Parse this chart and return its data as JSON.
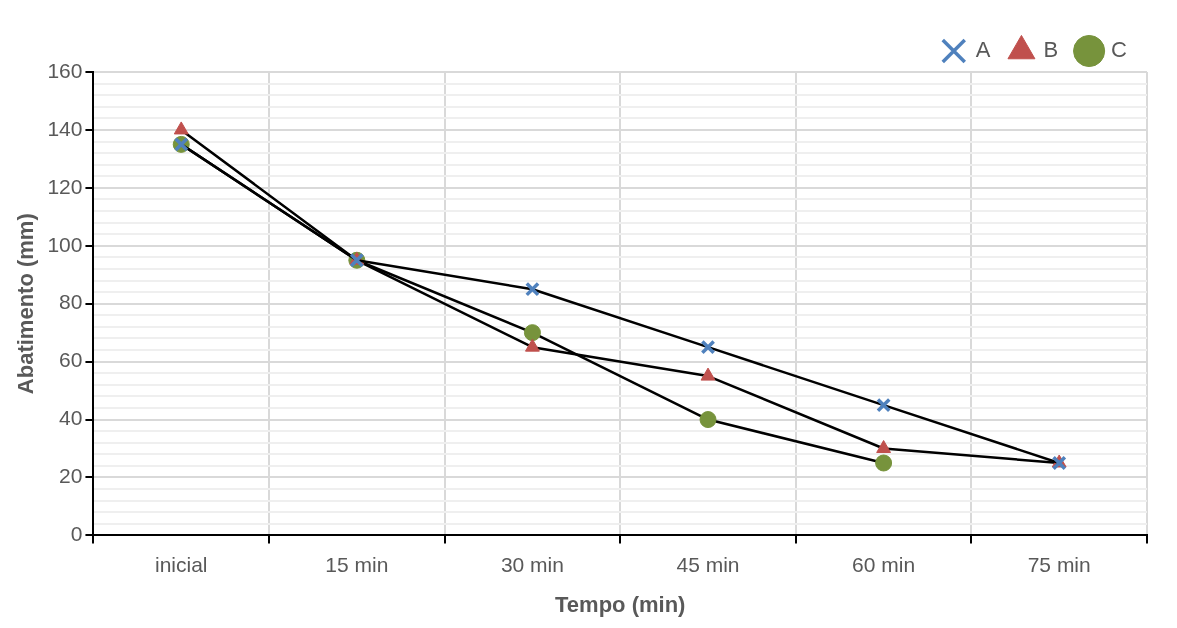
{
  "chart_data": {
    "type": "line",
    "xlabel": "Tempo (min)",
    "ylabel": "Abatimento (mm)",
    "categories": [
      "inicial",
      "15 min",
      "30 min",
      "45 min",
      "60 min",
      "75 min"
    ],
    "series": [
      {
        "name": "A",
        "color": "#4f81bd",
        "marker": "cross",
        "values": [
          135,
          95,
          85,
          65,
          45,
          25
        ]
      },
      {
        "name": "B",
        "color": "#c0504d",
        "marker": "triangle",
        "values": [
          140,
          95,
          65,
          55,
          30,
          25
        ]
      },
      {
        "name": "C",
        "color": "#77933c",
        "marker": "circle",
        "values": [
          135,
          95,
          70,
          40,
          25,
          null
        ]
      }
    ],
    "ylim": [
      0,
      160
    ],
    "yticks": [
      0,
      {
        "value": 4,
        "label": null
      },
      {
        "value": 8,
        "label": null
      },
      {
        "value": 12,
        "label": null
      },
      {
        "value": 16,
        "label": null
      },
      20,
      {
        "value": 24,
        "label": null
      },
      {
        "value": 28,
        "label": null
      },
      {
        "value": 32,
        "label": null
      },
      {
        "value": 36,
        "label": null
      },
      40,
      {
        "value": 44,
        "label": null
      },
      {
        "value": 48,
        "label": null
      },
      {
        "value": 52,
        "label": null
      },
      {
        "value": 56,
        "label": null
      },
      60,
      {
        "value": 64,
        "label": null
      },
      {
        "value": 68,
        "label": null
      },
      {
        "value": 72,
        "label": null
      },
      {
        "value": 76,
        "label": null
      },
      80,
      {
        "value": 84,
        "label": null
      },
      {
        "value": 88,
        "label": null
      },
      {
        "value": 92,
        "label": null
      },
      {
        "value": 96,
        "label": null
      },
      100,
      {
        "value": 104,
        "label": null
      },
      {
        "value": 108,
        "label": null
      },
      {
        "value": 112,
        "label": null
      },
      {
        "value": 116,
        "label": null
      },
      120,
      {
        "value": 124,
        "label": null
      },
      {
        "value": 128,
        "label": null
      },
      {
        "value": 132,
        "label": null
      },
      {
        "value": 136,
        "label": null
      },
      140,
      {
        "value": 144,
        "label": null
      },
      {
        "value": 148,
        "label": null
      },
      {
        "value": 152,
        "label": null
      },
      {
        "value": 156,
        "label": null
      },
      160
    ],
    "grid": true,
    "legend": "top right",
    "line_style": "solid"
  }
}
